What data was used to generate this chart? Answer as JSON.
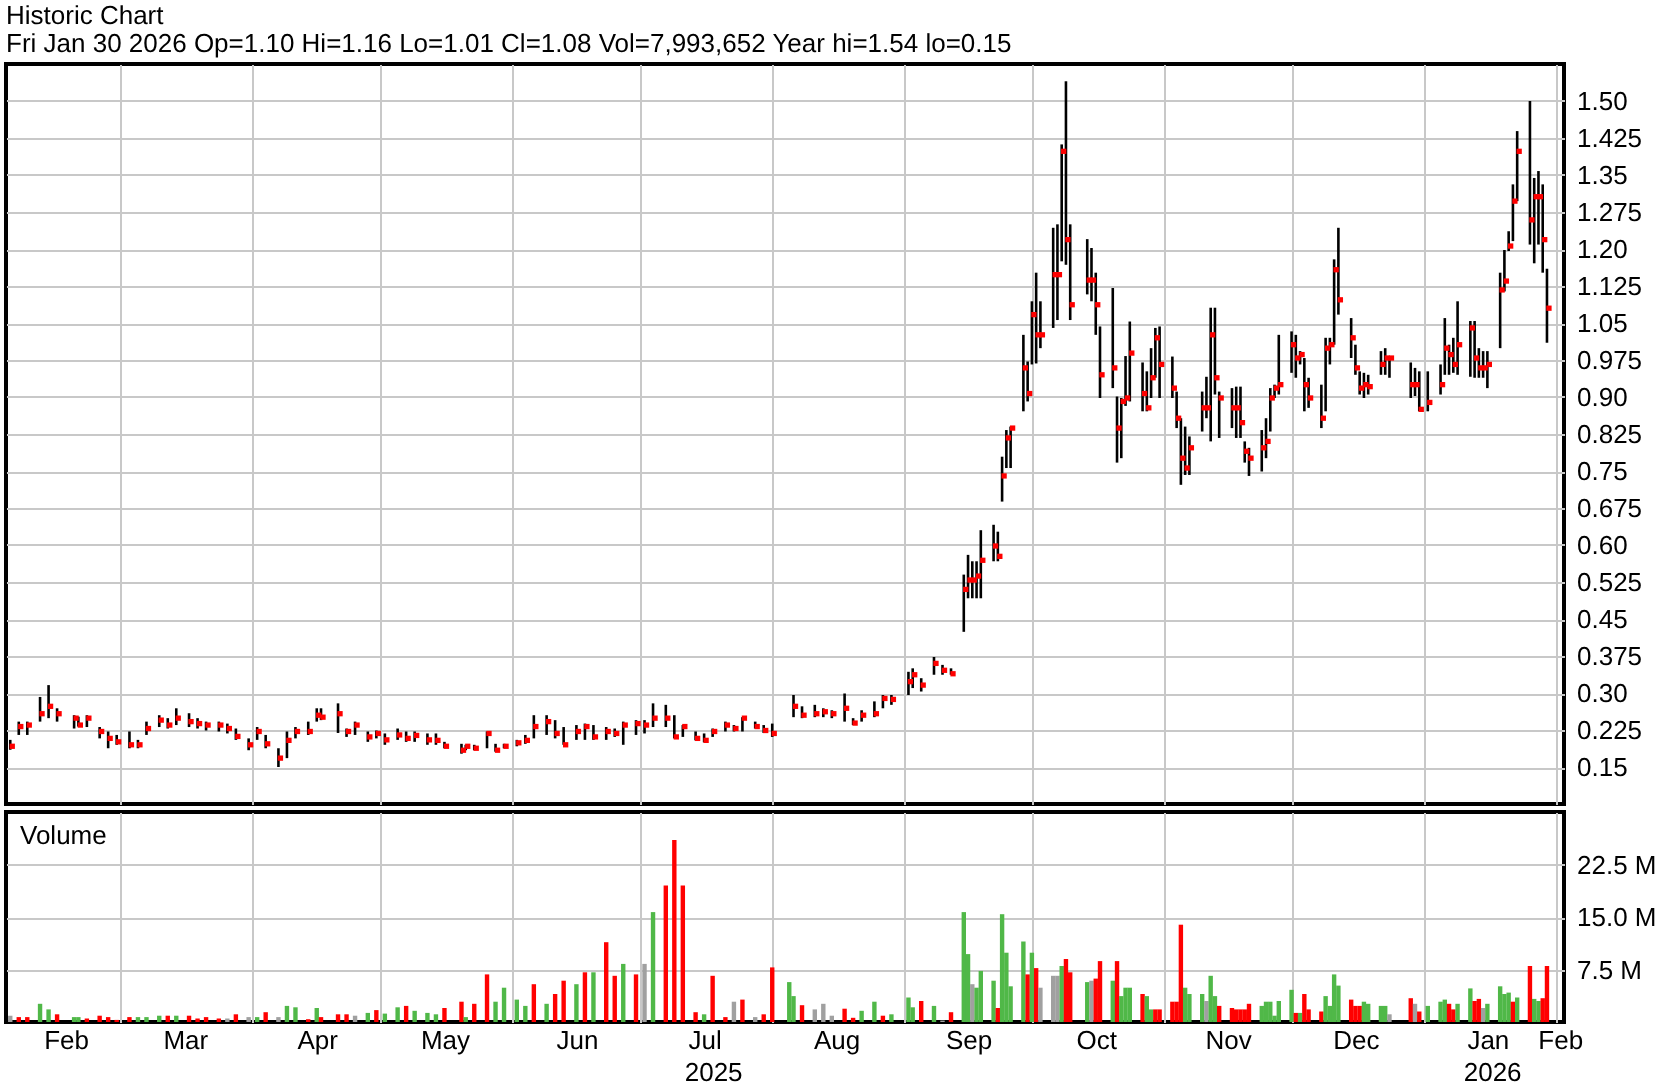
{
  "chart_data": [
    {
      "type": "scatter",
      "title": "Historic Chart",
      "subtitle": "Fri Jan 30 2026 Op=1.10 Hi=1.16 Lo=1.01 Cl=1.08 Vol=7,993,652 Year hi=1.54 lo=0.15",
      "x": [
        "2025-02-03",
        "2025-02-05",
        "2025-02-07",
        "2025-02-10",
        "2025-02-12",
        "2025-02-14",
        "2025-02-18",
        "2025-02-19",
        "2025-02-21",
        "2025-02-24",
        "2025-02-26",
        "2025-02-28",
        "2025-03-03",
        "2025-03-05",
        "2025-03-07",
        "2025-03-10",
        "2025-03-12",
        "2025-03-14",
        "2025-03-17",
        "2025-03-19",
        "2025-03-21",
        "2025-03-24",
        "2025-03-26",
        "2025-03-28",
        "2025-03-31",
        "2025-04-02",
        "2025-04-04",
        "2025-04-07",
        "2025-04-09",
        "2025-04-11",
        "2025-04-14",
        "2025-04-16",
        "2025-04-17",
        "2025-04-21",
        "2025-04-23",
        "2025-04-25",
        "2025-04-28",
        "2025-04-30",
        "2025-05-02",
        "2025-05-05",
        "2025-05-07",
        "2025-05-09",
        "2025-05-12",
        "2025-05-14",
        "2025-05-16",
        "2025-05-20",
        "2025-05-21",
        "2025-05-23",
        "2025-05-26",
        "2025-05-28",
        "2025-05-30",
        "2025-06-02",
        "2025-06-04",
        "2025-06-06",
        "2025-06-09",
        "2025-06-11",
        "2025-06-13",
        "2025-06-16",
        "2025-06-18",
        "2025-06-20",
        "2025-06-23",
        "2025-06-25",
        "2025-06-27",
        "2025-06-30",
        "2025-07-02",
        "2025-07-04",
        "2025-07-07",
        "2025-07-09",
        "2025-07-11",
        "2025-07-14",
        "2025-07-16",
        "2025-07-18",
        "2025-07-21",
        "2025-07-23",
        "2025-07-25",
        "2025-07-28",
        "2025-07-30",
        "2025-08-01",
        "2025-08-06",
        "2025-08-08",
        "2025-08-11",
        "2025-08-13",
        "2025-08-15",
        "2025-08-18",
        "2025-08-20",
        "2025-08-22",
        "2025-08-25",
        "2025-08-27",
        "2025-08-29",
        "2025-09-02",
        "2025-09-03",
        "2025-09-05",
        "2025-09-08",
        "2025-09-10",
        "2025-09-12",
        "2025-09-15",
        "2025-09-16",
        "2025-09-17",
        "2025-09-18",
        "2025-09-19",
        "2025-09-22",
        "2025-09-23",
        "2025-09-24",
        "2025-09-25",
        "2025-09-26",
        "2025-09-29",
        "2025-09-30",
        "2025-10-01",
        "2025-10-02",
        "2025-10-03",
        "2025-10-06",
        "2025-10-07",
        "2025-10-08",
        "2025-10-09",
        "2025-10-10",
        "2025-10-14",
        "2025-10-15",
        "2025-10-16",
        "2025-10-17",
        "2025-10-20",
        "2025-10-21",
        "2025-10-22",
        "2025-10-23",
        "2025-10-24",
        "2025-10-27",
        "2025-10-28",
        "2025-10-29",
        "2025-10-30",
        "2025-10-31",
        "2025-11-03",
        "2025-11-04",
        "2025-11-05",
        "2025-11-06",
        "2025-11-07",
        "2025-11-10",
        "2025-11-11",
        "2025-11-12",
        "2025-11-13",
        "2025-11-14",
        "2025-11-17",
        "2025-11-18",
        "2025-11-19",
        "2025-11-20",
        "2025-11-21",
        "2025-11-24",
        "2025-11-25",
        "2025-11-26",
        "2025-11-27",
        "2025-11-28",
        "2025-12-01",
        "2025-12-02",
        "2025-12-03",
        "2025-12-04",
        "2025-12-05",
        "2025-12-08",
        "2025-12-09",
        "2025-12-10",
        "2025-12-11",
        "2025-12-12",
        "2025-12-15",
        "2025-12-16",
        "2025-12-17",
        "2025-12-18",
        "2025-12-19",
        "2025-12-22",
        "2025-12-23",
        "2025-12-24",
        "2025-12-29",
        "2025-12-30",
        "2025-12-31",
        "2026-01-02",
        "2026-01-05",
        "2026-01-06",
        "2026-01-07",
        "2026-01-08",
        "2026-01-09",
        "2026-01-12",
        "2026-01-13",
        "2026-01-14",
        "2026-01-15",
        "2026-01-16",
        "2026-01-19",
        "2026-01-20",
        "2026-01-21",
        "2026-01-22",
        "2026-01-23",
        "2026-01-26",
        "2026-01-27",
        "2026-01-28",
        "2026-01-29",
        "2026-01-30"
      ],
      "values": [
        0.192,
        0.232,
        0.235,
        0.258,
        0.273,
        0.258,
        0.249,
        0.235,
        0.249,
        0.222,
        0.208,
        0.201,
        0.195,
        0.195,
        0.228,
        0.245,
        0.235,
        0.249,
        0.242,
        0.238,
        0.235,
        0.235,
        0.228,
        0.212,
        0.195,
        0.222,
        0.197,
        0.168,
        0.204,
        0.222,
        0.222,
        0.255,
        0.251,
        0.258,
        0.222,
        0.235,
        0.211,
        0.218,
        0.205,
        0.215,
        0.208,
        0.214,
        0.205,
        0.204,
        0.192,
        0.184,
        0.192,
        0.188,
        0.218,
        0.184,
        0.192,
        0.199,
        0.204,
        0.232,
        0.242,
        0.218,
        0.195,
        0.222,
        0.232,
        0.211,
        0.222,
        0.218,
        0.235,
        0.238,
        0.235,
        0.249,
        0.249,
        0.211,
        0.232,
        0.208,
        0.204,
        0.222,
        0.235,
        0.228,
        0.249,
        0.232,
        0.224,
        0.218,
        0.273,
        0.255,
        0.258,
        0.262,
        0.258,
        0.269,
        0.239,
        0.255,
        0.258,
        0.289,
        0.287,
        0.323,
        0.337,
        0.316,
        0.36,
        0.346,
        0.339,
        0.51,
        0.529,
        0.529,
        0.537,
        0.569,
        0.598,
        0.577,
        0.74,
        0.817,
        0.837,
        0.959,
        0.907,
        1.067,
        1.026,
        1.026,
        1.148,
        1.148,
        1.398,
        1.219,
        1.087,
        1.137,
        1.137,
        1.087,
        0.945,
        0.959,
        0.837,
        0.891,
        0.898,
        0.989,
        0.907,
        0.878,
        0.939,
        1.02,
        0.966,
        0.918,
        0.857,
        0.776,
        0.756,
        0.797,
        0.878,
        0.878,
        1.026,
        0.939,
        0.898,
        0.878,
        0.878,
        0.848,
        0.79,
        0.776,
        0.797,
        0.81,
        0.898,
        0.918,
        0.925,
        1.006,
        0.979,
        0.986,
        0.925,
        0.898,
        0.857,
        0.999,
        1.006,
        1.158,
        1.097,
        1.02,
        0.959,
        0.918,
        0.925,
        0.921,
        0.966,
        0.979,
        0.979,
        0.925,
        0.925,
        0.875,
        0.889,
        0.925,
        0.999,
        0.986,
        0.966,
        1.006,
        1.04,
        0.979,
        0.959,
        0.959,
        0.966,
        1.117,
        1.135,
        1.206,
        1.297,
        1.398,
        1.259,
        1.306,
        1.306,
        1.219,
        1.08
      ],
      "errors": [
        [
          0.185,
          0.205
        ],
        [
          0.215,
          0.242
        ],
        [
          0.215,
          0.242
        ],
        [
          0.242,
          0.292
        ],
        [
          0.249,
          0.316
        ],
        [
          0.242,
          0.269
        ],
        [
          0.228,
          0.255
        ],
        [
          0.232,
          0.252
        ],
        [
          0.231,
          0.255
        ],
        [
          0.208,
          0.231
        ],
        [
          0.188,
          0.222
        ],
        [
          0.195,
          0.215
        ],
        [
          0.188,
          0.222
        ],
        [
          0.188,
          0.205
        ],
        [
          0.215,
          0.242
        ],
        [
          0.231,
          0.255
        ],
        [
          0.228,
          0.249
        ],
        [
          0.235,
          0.269
        ],
        [
          0.231,
          0.259
        ],
        [
          0.228,
          0.249
        ],
        [
          0.224,
          0.242
        ],
        [
          0.222,
          0.242
        ],
        [
          0.218,
          0.238
        ],
        [
          0.205,
          0.228
        ],
        [
          0.184,
          0.208
        ],
        [
          0.205,
          0.231
        ],
        [
          0.188,
          0.215
        ],
        [
          0.15,
          0.188
        ],
        [
          0.168,
          0.222
        ],
        [
          0.208,
          0.231
        ],
        [
          0.215,
          0.242
        ],
        [
          0.242,
          0.269
        ],
        [
          0.245,
          0.269
        ],
        [
          0.219,
          0.279
        ],
        [
          0.211,
          0.228
        ],
        [
          0.215,
          0.242
        ],
        [
          0.201,
          0.222
        ],
        [
          0.208,
          0.224
        ],
        [
          0.195,
          0.218
        ],
        [
          0.205,
          0.228
        ],
        [
          0.201,
          0.222
        ],
        [
          0.201,
          0.222
        ],
        [
          0.195,
          0.218
        ],
        [
          0.195,
          0.218
        ],
        [
          0.188,
          0.201
        ],
        [
          0.177,
          0.197
        ],
        [
          0.184,
          0.195
        ],
        [
          0.184,
          0.195
        ],
        [
          0.188,
          0.222
        ],
        [
          0.181,
          0.197
        ],
        [
          0.188,
          0.197
        ],
        [
          0.192,
          0.205
        ],
        [
          0.197,
          0.215
        ],
        [
          0.208,
          0.255
        ],
        [
          0.215,
          0.255
        ],
        [
          0.208,
          0.245
        ],
        [
          0.195,
          0.231
        ],
        [
          0.205,
          0.235
        ],
        [
          0.205,
          0.238
        ],
        [
          0.205,
          0.235
        ],
        [
          0.205,
          0.231
        ],
        [
          0.211,
          0.228
        ],
        [
          0.195,
          0.242
        ],
        [
          0.215,
          0.245
        ],
        [
          0.218,
          0.245
        ],
        [
          0.231,
          0.279
        ],
        [
          0.231,
          0.276
        ],
        [
          0.208,
          0.255
        ],
        [
          0.211,
          0.235
        ],
        [
          0.204,
          0.222
        ],
        [
          0.2,
          0.218
        ],
        [
          0.211,
          0.228
        ],
        [
          0.222,
          0.242
        ],
        [
          0.222,
          0.235
        ],
        [
          0.222,
          0.251
        ],
        [
          0.228,
          0.242
        ],
        [
          0.219,
          0.235
        ],
        [
          0.211,
          0.238
        ],
        [
          0.251,
          0.296
        ],
        [
          0.249,
          0.273
        ],
        [
          0.251,
          0.276
        ],
        [
          0.251,
          0.269
        ],
        [
          0.249,
          0.265
        ],
        [
          0.242,
          0.299
        ],
        [
          0.235,
          0.249
        ],
        [
          0.242,
          0.265
        ],
        [
          0.251,
          0.283
        ],
        [
          0.269,
          0.296
        ],
        [
          0.276,
          0.296
        ],
        [
          0.296,
          0.343
        ],
        [
          0.31,
          0.35
        ],
        [
          0.303,
          0.33
        ],
        [
          0.337,
          0.373
        ],
        [
          0.337,
          0.357
        ],
        [
          0.337,
          0.35
        ],
        [
          0.424,
          0.54
        ],
        [
          0.492,
          0.58
        ],
        [
          0.492,
          0.567
        ],
        [
          0.492,
          0.567
        ],
        [
          0.492,
          0.63
        ],
        [
          0.567,
          0.641
        ],
        [
          0.567,
          0.627
        ],
        [
          0.688,
          0.779
        ],
        [
          0.756,
          0.833
        ],
        [
          0.756,
          0.84
        ],
        [
          0.871,
          1.026
        ],
        [
          0.891,
          0.972
        ],
        [
          0.966,
          1.094
        ],
        [
          0.968,
          1.152
        ],
        [
          0.999,
          1.094
        ],
        [
          1.04,
          1.243
        ],
        [
          1.056,
          1.25
        ],
        [
          1.175,
          1.412
        ],
        [
          1.168,
          1.54
        ],
        [
          1.056,
          1.25
        ],
        [
          1.108,
          1.22
        ],
        [
          1.094,
          1.202
        ],
        [
          1.026,
          1.152
        ],
        [
          0.898,
          1.043
        ],
        [
          0.918,
          1.121
        ],
        [
          0.767,
          0.901
        ],
        [
          0.776,
          0.898
        ],
        [
          0.882,
          0.983
        ],
        [
          0.891,
          1.053
        ],
        [
          0.871,
          0.97
        ],
        [
          0.871,
          0.952
        ],
        [
          0.898,
          0.999
        ],
        [
          0.939,
          1.04
        ],
        [
          0.898,
          1.043
        ],
        [
          0.898,
          0.982
        ],
        [
          0.837,
          0.911
        ],
        [
          0.722,
          0.857
        ],
        [
          0.742,
          0.84
        ],
        [
          0.742,
          0.82
        ],
        [
          0.83,
          0.911
        ],
        [
          0.857,
          0.941
        ],
        [
          0.81,
          1.081
        ],
        [
          0.905,
          1.081
        ],
        [
          0.817,
          0.911
        ],
        [
          0.837,
          0.918
        ],
        [
          0.817,
          0.921
        ],
        [
          0.817,
          0.921
        ],
        [
          0.767,
          0.81
        ],
        [
          0.74,
          0.797
        ],
        [
          0.749,
          0.833
        ],
        [
          0.776,
          0.857
        ],
        [
          0.83,
          0.918
        ],
        [
          0.898,
          0.925
        ],
        [
          0.905,
          1.026
        ],
        [
          0.949,
          1.033
        ],
        [
          0.939,
          1.026
        ],
        [
          0.966,
          0.993
        ],
        [
          0.871,
          0.979
        ],
        [
          0.878,
          0.939
        ],
        [
          0.837,
          0.925
        ],
        [
          0.871,
          1.02
        ],
        [
          0.966,
          1.02
        ],
        [
          1.006,
          1.179
        ],
        [
          1.067,
          1.243
        ],
        [
          0.979,
          1.06
        ],
        [
          0.945,
          1.006
        ],
        [
          0.905,
          0.952
        ],
        [
          0.898,
          0.949
        ],
        [
          0.905,
          0.945
        ],
        [
          0.945,
          0.993
        ],
        [
          0.945,
          0.999
        ],
        [
          0.939,
          0.983
        ],
        [
          0.898,
          0.97
        ],
        [
          0.902,
          0.959
        ],
        [
          0.871,
          0.952
        ],
        [
          0.871,
          0.952
        ],
        [
          0.905,
          0.966
        ],
        [
          0.945,
          1.06
        ],
        [
          0.945,
          1.006
        ],
        [
          0.949,
          1.02
        ],
        [
          0.945,
          1.094
        ],
        [
          0.941,
          1.054
        ],
        [
          0.939,
          1.054
        ],
        [
          0.939,
          0.999
        ],
        [
          0.939,
          0.993
        ],
        [
          0.918,
          0.993
        ],
        [
          0.999,
          1.152
        ],
        [
          1.114,
          1.198
        ],
        [
          1.196,
          1.236
        ],
        [
          1.216,
          1.331
        ],
        [
          1.297,
          1.439
        ],
        [
          1.209,
          1.5
        ],
        [
          1.171,
          1.344
        ],
        [
          1.209,
          1.358
        ],
        [
          1.152,
          1.331
        ],
        [
          1.01,
          1.16
        ]
      ],
      "color": "#ff0000",
      "marker": "square",
      "xlim": [
        "2025-02-02",
        "2026-02-03"
      ],
      "xticks": [
        {
          "value": "2025-03-01",
          "label": null
        },
        {
          "value": "2025-04-01",
          "label": null
        },
        {
          "value": "2025-05-01",
          "label": null
        },
        {
          "value": "2025-06-01",
          "label": null
        },
        {
          "value": "2025-07-01",
          "label": null
        },
        {
          "value": "2025-08-01",
          "label": null
        },
        {
          "value": "2025-09-01",
          "label": null
        },
        {
          "value": "2025-10-01",
          "label": null
        },
        {
          "value": "2025-11-01",
          "label": null
        },
        {
          "value": "2025-12-01",
          "label": null
        },
        {
          "value": "2026-01-01",
          "label": null
        },
        {
          "value": "2026-02-01",
          "label": null
        }
      ],
      "ylim": [
        0.075,
        1.575
      ],
      "yticks": [
        0.15,
        0.225,
        {
          "value": 0.3,
          "label": "0.30"
        },
        0.375,
        0.45,
        0.525,
        {
          "value": 0.6,
          "label": "0.60"
        },
        0.675,
        0.75,
        0.825,
        {
          "value": 0.9,
          "label": "0.90"
        },
        0.975,
        1.05,
        1.125,
        {
          "value": 1.2,
          "label": "1.20"
        },
        1.275,
        1.35,
        1.425,
        {
          "value": 1.5,
          "label": "1.50"
        }
      ],
      "grid": true,
      "tick_labels": "y"
    },
    {
      "type": "bar",
      "title": "Volume",
      "x": [
        "2025-02-03",
        "2025-02-05",
        "2025-02-07",
        "2025-02-10",
        "2025-02-12",
        "2025-02-14",
        "2025-02-18",
        "2025-02-19",
        "2025-02-21",
        "2025-02-24",
        "2025-02-26",
        "2025-02-28",
        "2025-03-03",
        "2025-03-05",
        "2025-03-07",
        "2025-03-10",
        "2025-03-12",
        "2025-03-14",
        "2025-03-17",
        "2025-03-19",
        "2025-03-21",
        "2025-03-24",
        "2025-03-26",
        "2025-03-28",
        "2025-03-31",
        "2025-04-02",
        "2025-04-04",
        "2025-04-07",
        "2025-04-09",
        "2025-04-11",
        "2025-04-14",
        "2025-04-16",
        "2025-04-17",
        "2025-04-21",
        "2025-04-23",
        "2025-04-25",
        "2025-04-28",
        "2025-04-30",
        "2025-05-02",
        "2025-05-05",
        "2025-05-07",
        "2025-05-09",
        "2025-05-12",
        "2025-05-14",
        "2025-05-16",
        "2025-05-20",
        "2025-05-21",
        "2025-05-23",
        "2025-05-26",
        "2025-05-28",
        "2025-05-30",
        "2025-06-02",
        "2025-06-04",
        "2025-06-06",
        "2025-06-09",
        "2025-06-11",
        "2025-06-13",
        "2025-06-16",
        "2025-06-18",
        "2025-06-20",
        "2025-06-23",
        "2025-06-25",
        "2025-06-27",
        "2025-06-30",
        "2025-07-02",
        "2025-07-04",
        "2025-07-07",
        "2025-07-09",
        "2025-07-11",
        "2025-07-14",
        "2025-07-16",
        "2025-07-18",
        "2025-07-21",
        "2025-07-23",
        "2025-07-25",
        "2025-07-28",
        "2025-07-30",
        "2025-08-01",
        "2025-08-05",
        "2025-08-06",
        "2025-08-08",
        "2025-08-11",
        "2025-08-13",
        "2025-08-15",
        "2025-08-18",
        "2025-08-20",
        "2025-08-22",
        "2025-08-25",
        "2025-08-27",
        "2025-08-29",
        "2025-09-02",
        "2025-09-03",
        "2025-09-05",
        "2025-09-08",
        "2025-09-10",
        "2025-09-12",
        "2025-09-15",
        "2025-09-16",
        "2025-09-17",
        "2025-09-18",
        "2025-09-19",
        "2025-09-22",
        "2025-09-23",
        "2025-09-24",
        "2025-09-25",
        "2025-09-26",
        "2025-09-29",
        "2025-09-30",
        "2025-10-01",
        "2025-10-02",
        "2025-10-03",
        "2025-10-06",
        "2025-10-07",
        "2025-10-08",
        "2025-10-09",
        "2025-10-10",
        "2025-10-14",
        "2025-10-15",
        "2025-10-16",
        "2025-10-17",
        "2025-10-20",
        "2025-10-21",
        "2025-10-22",
        "2025-10-23",
        "2025-10-24",
        "2025-10-27",
        "2025-10-28",
        "2025-10-29",
        "2025-10-30",
        "2025-10-31",
        "2025-11-03",
        "2025-11-04",
        "2025-11-05",
        "2025-11-06",
        "2025-11-07",
        "2025-11-10",
        "2025-11-11",
        "2025-11-12",
        "2025-11-13",
        "2025-11-14",
        "2025-11-17",
        "2025-11-18",
        "2025-11-19",
        "2025-11-20",
        "2025-11-21",
        "2025-11-24",
        "2025-11-25",
        "2025-11-26",
        "2025-11-27",
        "2025-11-28",
        "2025-12-01",
        "2025-12-02",
        "2025-12-03",
        "2025-12-04",
        "2025-12-05",
        "2025-12-08",
        "2025-12-09",
        "2025-12-10",
        "2025-12-11",
        "2025-12-12",
        "2025-12-15",
        "2025-12-16",
        "2025-12-17",
        "2025-12-18",
        "2025-12-19",
        "2025-12-22",
        "2025-12-23",
        "2025-12-24",
        "2025-12-29",
        "2025-12-30",
        "2025-12-31",
        "2026-01-02",
        "2026-01-05",
        "2026-01-06",
        "2026-01-07",
        "2026-01-08",
        "2026-01-09",
        "2026-01-12",
        "2026-01-13",
        "2026-01-14",
        "2026-01-15",
        "2026-01-16",
        "2026-01-19",
        "2026-01-20",
        "2026-01-21",
        "2026-01-22",
        "2026-01-23",
        "2026-01-26",
        "2026-01-27",
        "2026-01-28",
        "2026-01-29",
        "2026-01-30"
      ],
      "values": [
        0.9,
        0.7,
        0.7,
        2.6,
        1.8,
        1.1,
        0.7,
        0.7,
        0.5,
        0.9,
        0.7,
        0.3,
        0.7,
        0.7,
        0.7,
        0.9,
        0.9,
        0.9,
        0.9,
        0.5,
        0.7,
        0.5,
        0.5,
        1.1,
        0.7,
        0.7,
        1.4,
        0.7,
        2.3,
        2.1,
        0.4,
        2.0,
        0.7,
        1.1,
        1.1,
        0.9,
        1.3,
        1.7,
        1.2,
        2.1,
        2.3,
        1.6,
        1.3,
        1.1,
        2.0,
        2.9,
        0.7,
        2.6,
        6.8,
        2.9,
        4.9,
        3.2,
        2.3,
        5.4,
        2.6,
        4.0,
        5.9,
        5.4,
        7.1,
        7.1,
        11.4,
        6.6,
        8.3,
        6.8,
        8.3,
        15.7,
        19.5,
        26.0,
        19.5,
        1.4,
        1.1,
        6.6,
        0.7,
        2.9,
        3.2,
        0.7,
        1.1,
        7.8,
        5.7,
        3.7,
        2.4,
        1.8,
        2.6,
        0.9,
        1.9,
        0.6,
        1.6,
        2.9,
        0.9,
        1.1,
        3.5,
        2.1,
        3.0,
        2.3,
        0.2,
        1.4,
        15.7,
        9.7,
        5.4,
        4.9,
        7.3,
        5.9,
        2.0,
        15.4,
        9.9,
        5.1,
        11.5,
        6.8,
        9.9,
        7.7,
        4.9,
        6.6,
        6.6,
        8.0,
        9.0,
        7.1,
        5.7,
        5.9,
        6.2,
        8.7,
        5.9,
        8.7,
        3.7,
        4.9,
        4.9,
        4.0,
        3.7,
        1.8,
        1.8,
        1.8,
        2.9,
        2.9,
        13.9,
        4.9,
        4.0,
        4.0,
        3.0,
        6.6,
        3.7,
        2.3,
        2.0,
        1.8,
        1.8,
        1.8,
        2.6,
        2.3,
        2.9,
        2.9,
        0.9,
        3.0,
        4.6,
        1.3,
        1.3,
        4.0,
        1.8,
        1.5,
        3.7,
        2.3,
        6.8,
        5.2,
        3.2,
        2.3,
        2.3,
        2.9,
        2.6,
        2.3,
        2.3,
        1.1,
        3.4,
        2.6,
        1.5,
        2.3,
        2.9,
        3.2,
        2.6,
        1.8,
        2.6,
        4.8,
        3.0,
        3.3,
        2.0,
        2.6,
        5.1,
        4.0,
        4.2,
        2.9,
        3.5,
        8.0,
        3.3,
        3.0,
        3.4,
        8.0
      ],
      "colors": [
        "#a0a0a0",
        "#ff0000",
        "#ff0000",
        "#50b848",
        "#50b848",
        "#ff0000",
        "#50b848",
        "#50b848",
        "#ff0000",
        "#ff0000",
        "#ff0000",
        "#ff0000",
        "#ff0000",
        "#50b848",
        "#50b848",
        "#50b848",
        "#ff0000",
        "#50b848",
        "#ff0000",
        "#ff0000",
        "#ff0000",
        "#ff0000",
        "#a0a0a0",
        "#ff0000",
        "#a0a0a0",
        "#50b848",
        "#ff0000",
        "#a0a0a0",
        "#50b848",
        "#50b848",
        "#ff0000",
        "#50b848",
        "#ff0000",
        "#ff0000",
        "#ff0000",
        "#a0a0a0",
        "#50b848",
        "#ff0000",
        "#50b848",
        "#50b848",
        "#ff0000",
        "#50b848",
        "#50b848",
        "#50b848",
        "#ff0000",
        "#ff0000",
        "#50b848",
        "#ff0000",
        "#ff0000",
        "#50b848",
        "#50b848",
        "#50b848",
        "#50b848",
        "#ff0000",
        "#50b848",
        "#ff0000",
        "#ff0000",
        "#50b848",
        "#ff0000",
        "#50b848",
        "#ff0000",
        "#ff0000",
        "#50b848",
        "#ff0000",
        "#a0a0a0",
        "#50b848",
        "#ff0000",
        "#ff0000",
        "#ff0000",
        "#ff0000",
        "#50b848",
        "#ff0000",
        "#ff0000",
        "#a0a0a0",
        "#ff0000",
        "#a0a0a0",
        "#ff0000",
        "#ff0000",
        "#50b848",
        "#50b848",
        "#ff0000",
        "#a0a0a0",
        "#a0a0a0",
        "#a0a0a0",
        "#ff0000",
        "#ff0000",
        "#50b848",
        "#50b848",
        "#ff0000",
        "#50b848",
        "#50b848",
        "#50b848",
        "#ff0000",
        "#50b848",
        "#a0a0a0",
        "#ff0000",
        "#50b848",
        "#50b848",
        "#a0a0a0",
        "#50b848",
        "#50b848",
        "#50b848",
        "#ff0000",
        "#50b848",
        "#50b848",
        "#50b848",
        "#50b848",
        "#ff0000",
        "#50b848",
        "#ff0000",
        "#a0a0a0",
        "#a0a0a0",
        "#a0a0a0",
        "#50b848",
        "#ff0000",
        "#ff0000",
        "#50b848",
        "#a0a0a0",
        "#ff0000",
        "#ff0000",
        "#50b848",
        "#ff0000",
        "#50b848",
        "#50b848",
        "#50b848",
        "#ff0000",
        "#50b848",
        "#50b848",
        "#ff0000",
        "#ff0000",
        "#ff0000",
        "#ff0000",
        "#ff0000",
        "#50b848",
        "#50b848",
        "#50b848",
        "#a0a0a0",
        "#50b848",
        "#50b848",
        "#ff0000",
        "#ff0000",
        "#ff0000",
        "#ff0000",
        "#ff0000",
        "#ff0000",
        "#50b848",
        "#50b848",
        "#50b848",
        "#50b848",
        "#50b848",
        "#50b848",
        "#ff0000",
        "#50b848",
        "#ff0000",
        "#ff0000",
        "#ff0000",
        "#50b848",
        "#50b848",
        "#50b848",
        "#50b848",
        "#ff0000",
        "#ff0000",
        "#ff0000",
        "#50b848",
        "#50b848",
        "#50b848",
        "#50b848",
        "#a0a0a0",
        "#ff0000",
        "#a0a0a0",
        "#ff0000",
        "#50b848",
        "#50b848",
        "#50b848",
        "#ff0000",
        "#ff0000",
        "#50b848",
        "#50b848",
        "#ff0000",
        "#ff0000",
        "#a0a0a0",
        "#50b848",
        "#50b848",
        "#50b848",
        "#50b848",
        "#ff0000",
        "#50b848",
        "#ff0000",
        "#50b848",
        "#50b848",
        "#ff0000",
        "#ff0000"
      ],
      "xlim": [
        "2025-02-02",
        "2026-02-03"
      ],
      "xticks": [
        {
          "value": "2025-02-16",
          "label": "Feb"
        },
        {
          "value": "2025-03-01",
          "label": null
        },
        {
          "value": "2025-03-16",
          "label": "Mar"
        },
        {
          "value": "2025-04-01",
          "label": null
        },
        {
          "value": "2025-04-16",
          "label": "Apr"
        },
        {
          "value": "2025-05-01",
          "label": null
        },
        {
          "value": "2025-05-16",
          "label": "May"
        },
        {
          "value": "2025-06-01",
          "label": null
        },
        {
          "value": "2025-06-16",
          "label": "Jun"
        },
        {
          "value": "2025-07-01",
          "label": null
        },
        {
          "value": "2025-07-16",
          "label": "Jul"
        },
        {
          "value": "2025-08-01",
          "label": null
        },
        {
          "value": "2025-08-16",
          "label": "Aug"
        },
        {
          "value": "2025-09-01",
          "label": null
        },
        {
          "value": "2025-09-16",
          "label": "Sep"
        },
        {
          "value": "2025-10-01",
          "label": null
        },
        {
          "value": "2025-10-16",
          "label": "Oct"
        },
        {
          "value": "2025-11-01",
          "label": null
        },
        {
          "value": "2025-11-16",
          "label": "Nov"
        },
        {
          "value": "2025-12-01",
          "label": null
        },
        {
          "value": "2025-12-16",
          "label": "Dec"
        },
        {
          "value": "2026-01-01",
          "label": null
        },
        {
          "value": "2026-01-16",
          "label": "Jan"
        },
        {
          "value": "2026-02-01",
          "label": null
        },
        {
          "value": "2026-02-02",
          "label": "Feb"
        }
      ],
      "x2lim": [
        "2025-02-02",
        "2026-02-03"
      ],
      "x2ticks": [
        {
          "value": "2025-07-18",
          "label": "2025"
        },
        {
          "value": "2026-01-17",
          "label": "2026"
        }
      ],
      "ylim": [
        0,
        30
      ],
      "yticks": [
        {
          "value": 7.5,
          "label": "7.5 M"
        },
        {
          "value": 15,
          "label": "15.0 M"
        },
        {
          "value": 22.5,
          "label": "22.5 M"
        }
      ],
      "grid": true
    }
  ]
}
